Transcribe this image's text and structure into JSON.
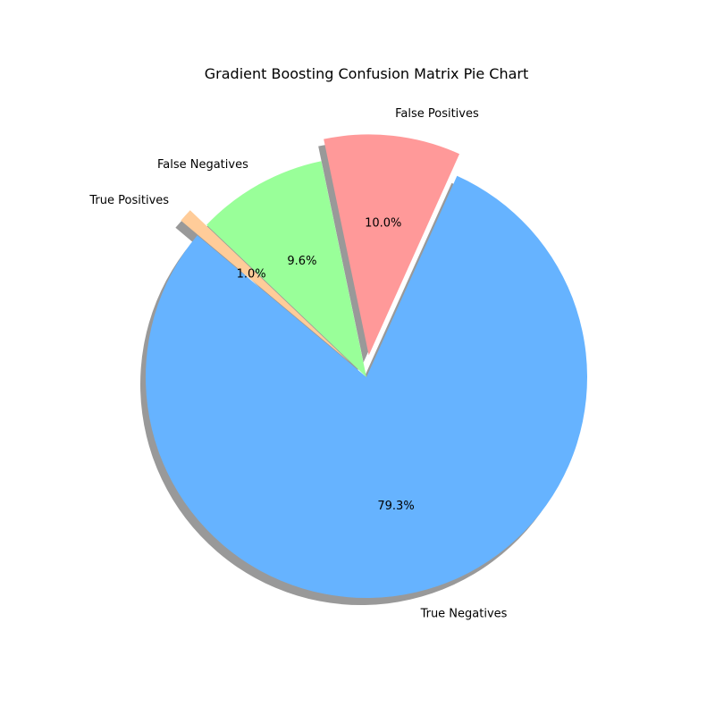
{
  "chart_data": {
    "type": "pie",
    "title": "Gradient Boosting Confusion Matrix Pie Chart",
    "start_angle_deg": 140,
    "counterclockwise": true,
    "shadow": true,
    "slices": [
      {
        "label": "True Negatives",
        "value": 79.3,
        "pct_label": "79.3%",
        "color": "#66b3ff",
        "explode": 0.0
      },
      {
        "label": "False Positives",
        "value": 10.0,
        "pct_label": "10.0%",
        "color": "#ff9999",
        "explode": 0.1
      },
      {
        "label": "False Negatives",
        "value": 9.6,
        "pct_label": "9.6%",
        "color": "#99ff99",
        "explode": 0.0
      },
      {
        "label": "True Positives",
        "value": 1.0,
        "pct_label": "1.0%",
        "color": "#ffcc99",
        "explode": 0.1
      }
    ]
  }
}
